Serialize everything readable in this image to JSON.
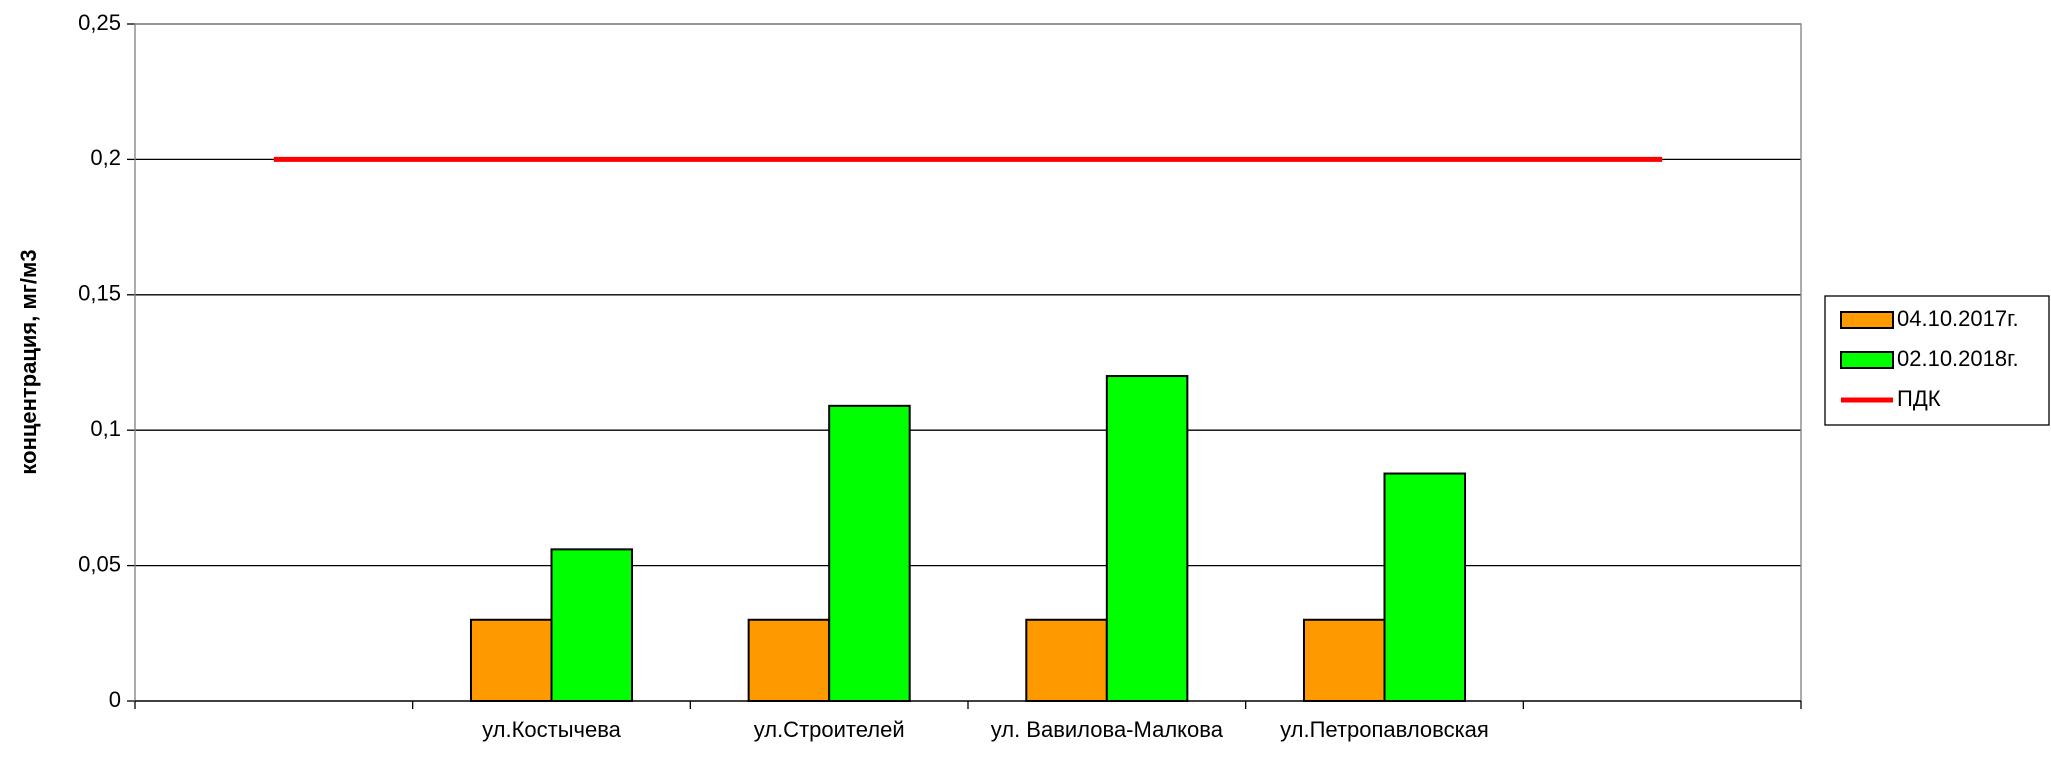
{
  "chart_data": {
    "type": "bar",
    "y_label": "концентрация, мг/м3",
    "categories": [
      null,
      "ул.Костычева",
      "ул.Строителей",
      "ул. Вавилова-Малкова",
      "ул.Петропавловская",
      null
    ],
    "series": [
      {
        "name": "04.10.2017г.",
        "color": "#ff9900",
        "type": "bar",
        "values": [
          null,
          0.03,
          0.03,
          0.03,
          0.03,
          null
        ]
      },
      {
        "name": "02.10.2018г.",
        "color": "#00ff00",
        "type": "bar",
        "values": [
          null,
          0.056,
          0.109,
          0.12,
          0.084,
          null
        ]
      },
      {
        "name": "ПДК",
        "color": "#ff0000",
        "type": "line",
        "values": [
          0.2,
          0.2,
          0.2,
          0.2,
          0.2,
          0.2
        ]
      }
    ],
    "ylim": [
      0,
      0.25
    ],
    "yticks": [
      0,
      {
        "value": 0.05,
        "label": "0,05"
      },
      {
        "value": 0.1,
        "label": "0,1"
      },
      {
        "value": 0.15,
        "label": "0,15"
      },
      {
        "value": 0.2,
        "label": "0,2"
      },
      {
        "value": 0.25,
        "label": "0,25"
      }
    ],
    "grid": true,
    "legend": "right"
  }
}
